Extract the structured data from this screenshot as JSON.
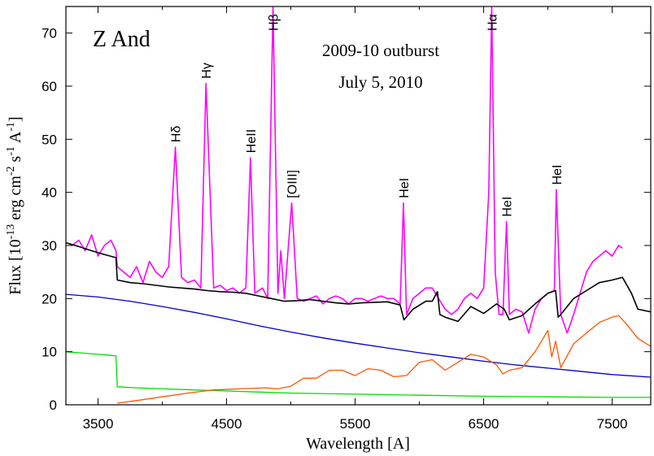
{
  "chart_data": {
    "type": "line",
    "title": "Z And",
    "annotations": {
      "event": "2009-10 outburst",
      "date": "July 5, 2010",
      "lines": [
        {
          "label": "Hδ",
          "x": 4102,
          "y": 48.5
        },
        {
          "label": "Hγ",
          "x": 4340,
          "y": 60.5
        },
        {
          "label": "HeII",
          "x": 4686,
          "y": 46.5
        },
        {
          "label": "Hβ",
          "x": 4861,
          "y": 75
        },
        {
          "label": "[OIII]",
          "x": 5007,
          "y": 38
        },
        {
          "label": "HeI",
          "x": 5876,
          "y": 38
        },
        {
          "label": "Hα",
          "x": 6563,
          "y": 75
        },
        {
          "label": "HeI",
          "x": 6678,
          "y": 34.5
        },
        {
          "label": "HeI",
          "x": 7065,
          "y": 40.5
        }
      ]
    },
    "xlabel": "Wavelength [A]",
    "ylabel": {
      "parts": [
        "Flux [10",
        "-13",
        " erg cm",
        "-2",
        " s",
        "-1",
        " A",
        "-1",
        "]"
      ]
    },
    "xlim": [
      3250,
      7800
    ],
    "ylim": [
      0,
      75
    ],
    "xticks": [
      3500,
      4500,
      5500,
      6500,
      7500
    ],
    "yticks": [
      0,
      10,
      20,
      30,
      40,
      50,
      60,
      70
    ],
    "grid": false,
    "series": [
      {
        "color": "#ff00ff",
        "x": [
          3300,
          3350,
          3400,
          3450,
          3500,
          3550,
          3600,
          3640,
          3650,
          3700,
          3750,
          3800,
          3850,
          3900,
          3950,
          4000,
          4050,
          4102,
          4150,
          4200,
          4250,
          4300,
          4340,
          4400,
          4450,
          4500,
          4550,
          4600,
          4650,
          4686,
          4720,
          4780,
          4820,
          4861,
          4900,
          4922,
          4950,
          5007,
          5050,
          5100,
          5150,
          5200,
          5250,
          5300,
          5350,
          5400,
          5450,
          5500,
          5550,
          5600,
          5650,
          5700,
          5750,
          5800,
          5850,
          5876,
          5900,
          5950,
          6000,
          6050,
          6100,
          6150,
          6200,
          6250,
          6300,
          6350,
          6400,
          6450,
          6500,
          6540,
          6563,
          6590,
          6620,
          6650,
          6678,
          6700,
          6750,
          6800,
          6850,
          6900,
          6950,
          7000,
          7050,
          7065,
          7100,
          7150,
          7200,
          7250,
          7300,
          7350,
          7400,
          7450,
          7500,
          7550,
          7580
        ],
        "y": [
          30,
          31,
          29,
          32,
          28,
          30,
          31,
          29,
          26,
          25,
          24,
          26,
          23,
          27,
          25,
          24,
          26,
          48.5,
          24,
          23,
          23.5,
          22,
          60.5,
          22,
          22.5,
          21.5,
          22,
          21,
          22,
          46.5,
          21,
          22,
          20,
          75,
          21,
          29,
          20,
          38,
          20,
          19.5,
          20,
          20.5,
          19,
          20,
          20.5,
          20,
          19,
          20,
          20,
          19.5,
          20,
          20.5,
          20,
          20,
          19,
          38,
          17,
          20,
          21,
          22,
          22,
          20,
          18,
          17,
          18,
          20,
          21,
          20,
          22,
          40,
          75,
          25,
          17,
          17,
          34.5,
          17,
          18,
          17.5,
          13.5,
          18,
          20,
          21,
          21.5,
          40.5,
          17,
          13.5,
          17,
          21,
          25,
          27,
          28,
          29,
          28,
          30,
          29.5
        ]
      },
      {
        "color": "#000000",
        "x": [
          3250,
          3350,
          3450,
          3550,
          3640,
          3650,
          3750,
          3850,
          3950,
          4050,
          4150,
          4250,
          4350,
          4450,
          4550,
          4650,
          4750,
          4850,
          4950,
          5050,
          5150,
          5250,
          5350,
          5450,
          5550,
          5650,
          5750,
          5850,
          5880,
          5950,
          6050,
          6100,
          6140,
          6160,
          6200,
          6300,
          6400,
          6500,
          6600,
          6660,
          6700,
          6800,
          6900,
          7000,
          7060,
          7080,
          7100,
          7200,
          7300,
          7400,
          7500,
          7580,
          7650,
          7700,
          7800
        ],
        "y": [
          30.5,
          29.8,
          29,
          28.3,
          27.7,
          23.5,
          23,
          22.8,
          22.5,
          22.2,
          22,
          21.8,
          21.5,
          21.3,
          21.2,
          21,
          20.5,
          20,
          19.5,
          19.6,
          19.8,
          19.5,
          19.2,
          19,
          19.2,
          19.3,
          19.4,
          18.8,
          16,
          18,
          19.5,
          19.5,
          21.3,
          17,
          16.5,
          15.7,
          18.5,
          17.2,
          19,
          18,
          16,
          16.8,
          19,
          21,
          21.5,
          16.5,
          17,
          20,
          21.5,
          23,
          23.5,
          24,
          21,
          18,
          17.5
        ]
      },
      {
        "color": "#0000cc",
        "x": [
          3250,
          3500,
          3750,
          4000,
          4250,
          4500,
          4750,
          5000,
          5250,
          5500,
          5750,
          6000,
          6250,
          6500,
          6750,
          7000,
          7250,
          7500,
          7800
        ],
        "y": [
          20.8,
          20.3,
          19.5,
          18.5,
          17.4,
          16.2,
          14.9,
          13.7,
          12.6,
          11.6,
          10.7,
          9.8,
          9.0,
          8.2,
          7.5,
          6.9,
          6.3,
          5.7,
          5.2
        ]
      },
      {
        "color": "#00dd00",
        "x": [
          3250,
          3400,
          3500,
          3600,
          3640,
          3650,
          3800,
          4000,
          4250,
          4500,
          4750,
          5000,
          5500,
          6000,
          6500,
          7000,
          7500,
          7800
        ],
        "y": [
          10,
          9.7,
          9.5,
          9.3,
          9.2,
          3.4,
          3.2,
          3.0,
          2.8,
          2.6,
          2.4,
          2.2,
          2.0,
          1.8,
          1.6,
          1.5,
          1.4,
          1.4
        ]
      },
      {
        "color": "#ff5500",
        "x": [
          3650,
          3800,
          4000,
          4200,
          4400,
          4600,
          4800,
          4900,
          5000,
          5100,
          5200,
          5300,
          5400,
          5500,
          5600,
          5700,
          5800,
          5900,
          6000,
          6100,
          6200,
          6300,
          6400,
          6500,
          6600,
          6650,
          6700,
          6800,
          6900,
          7000,
          7030,
          7060,
          7100,
          7200,
          7300,
          7400,
          7500,
          7550,
          7600,
          7700,
          7800
        ],
        "y": [
          0.3,
          0.8,
          1.5,
          2.2,
          2.8,
          3.0,
          3.2,
          3.0,
          3.5,
          5.0,
          5.0,
          6.5,
          6.5,
          5.5,
          6.8,
          6.5,
          5.3,
          5.5,
          8.0,
          8.5,
          6.5,
          8.0,
          9.5,
          9.0,
          7.5,
          5.8,
          6.5,
          7.0,
          10.0,
          14.0,
          9.0,
          12.0,
          7.0,
          11.5,
          13.5,
          15.5,
          16.5,
          16.8,
          15.5,
          12.5,
          11.0
        ]
      }
    ]
  }
}
